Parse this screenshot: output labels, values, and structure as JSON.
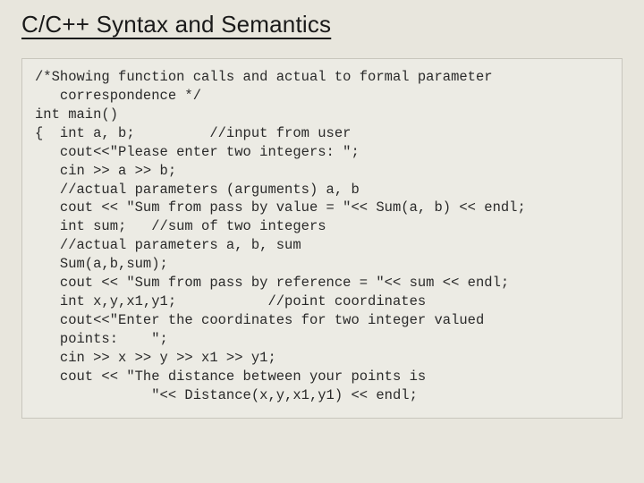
{
  "slide": {
    "title": "C/C++ Syntax and Semantics",
    "background_color": "#e8e6dd",
    "code_box": {
      "background_color": "#ecebe4",
      "border_color": "#c8c6bd",
      "font_family": "Courier New",
      "font_size_pt": 12,
      "text_color": "#2a2a2a",
      "lines": [
        "/*Showing function calls and actual to formal parameter",
        "   correspondence */",
        "int main()",
        "{  int a, b;         //input from user",
        "   cout<<\"Please enter two integers: \";",
        "   cin >> a >> b;",
        "   //actual parameters (arguments) a, b",
        "   cout << \"Sum from pass by value = \"<< Sum(a, b) << endl;",
        "   int sum;   //sum of two integers",
        "   //actual parameters a, b, sum",
        "   Sum(a,b,sum);",
        "   cout << \"Sum from pass by reference = \"<< sum << endl;",
        "   int x,y,x1,y1;           //point coordinates",
        "   cout<<\"Enter the coordinates for two integer valued",
        "   points:    \";",
        "   cin >> x >> y >> x1 >> y1;",
        "   cout << \"The distance between your points is",
        "              \"<< Distance(x,y,x1,y1) << endl;"
      ]
    }
  }
}
